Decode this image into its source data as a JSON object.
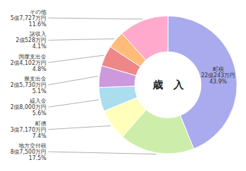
{
  "chart_data": {
    "type": "donut",
    "title": "歳　入",
    "categories": [
      "町税\n22億243万円",
      "地方交付税\n8億7,500万円",
      "町債\n3億7,170万円",
      "繰入金\n2億8,000万円",
      "県支出金\n2億5,730万円",
      "国庫支出金\n2億4,102万円",
      "諸収入\n2億528万円",
      "その他\n5億7,727万円"
    ],
    "values": [
      43.9,
      17.5,
      7.4,
      5.6,
      5.1,
      4.8,
      4.1,
      11.6
    ],
    "value_labels": [
      "43.9%",
      "17.5%",
      "7.4%",
      "5.6%",
      "5.1%",
      "4.8%",
      "4.1%",
      "11.6%"
    ],
    "data_labels": true,
    "colors": [
      "#aaaaee",
      "#cceeaa",
      "#ffffbb",
      "#aaddee",
      "#cc99dd",
      "#ee8888",
      "#ffbb77",
      "#ffaacc"
    ]
  }
}
